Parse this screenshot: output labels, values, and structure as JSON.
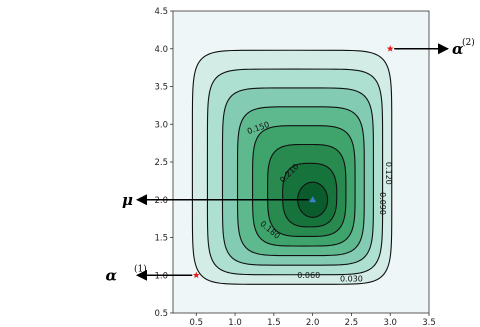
{
  "chart_data": {
    "type": "contour",
    "title": "",
    "xlabel": "",
    "ylabel": "",
    "xlim": [
      0.2,
      3.5
    ],
    "ylim": [
      0.5,
      4.5
    ],
    "xticks": [
      "0.5",
      "1.0",
      "1.5",
      "2.0",
      "2.5",
      "3.0",
      "3.5"
    ],
    "yticks": [
      "0.5",
      "1.0",
      "1.5",
      "2.0",
      "2.5",
      "3.0",
      "3.5",
      "4.0",
      "4.5"
    ],
    "background_color": "#eef6f8",
    "contour_levels": [
      {
        "level": 0.0,
        "fill": "#d3ece6"
      },
      {
        "level": 0.03,
        "fill": "#ade0d1"
      },
      {
        "level": 0.06,
        "fill": "#83cbb2"
      },
      {
        "level": 0.09,
        "fill": "#5fb98e"
      },
      {
        "level": 0.12,
        "fill": "#3ea46b"
      },
      {
        "level": 0.15,
        "fill": "#288a4f"
      },
      {
        "level": 0.18,
        "fill": "#16733c"
      },
      {
        "level": 0.21,
        "fill": "#0b5c2d"
      }
    ],
    "center": [
      2.0,
      2.0
    ],
    "contour_labels": [
      {
        "text": "0.150",
        "x": 1.3,
        "y": 2.95,
        "rotate": -20
      },
      {
        "text": "0.210",
        "x": 1.7,
        "y": 2.35,
        "rotate": -45
      },
      {
        "text": "0.180",
        "x": 1.45,
        "y": 1.6,
        "rotate": 40
      },
      {
        "text": "0.060",
        "x": 1.95,
        "y": 1.0,
        "rotate": 0
      },
      {
        "text": "0.030",
        "x": 2.5,
        "y": 0.95,
        "rotate": 0
      },
      {
        "text": "0.120",
        "x": 2.98,
        "y": 2.35,
        "rotate": 90
      },
      {
        "text": "0.090",
        "x": 2.9,
        "y": 1.95,
        "rotate": 90
      }
    ],
    "points": [
      {
        "name": "mu",
        "x": 2.0,
        "y": 2.0,
        "marker": "triangle",
        "color": "#3b7fd1"
      },
      {
        "name": "alpha1",
        "x": 0.5,
        "y": 1.0,
        "marker": "star",
        "color": "#e41a1c"
      },
      {
        "name": "alpha2",
        "x": 3.0,
        "y": 4.0,
        "marker": "star",
        "color": "#e41a1c"
      }
    ],
    "annotations": [
      {
        "point": "mu",
        "symbol": "μ",
        "sup": "",
        "side": "left"
      },
      {
        "point": "alpha1",
        "symbol": "α",
        "sup": "(1)",
        "side": "left"
      },
      {
        "point": "alpha2",
        "symbol": "α",
        "sup": "(2)",
        "side": "right"
      }
    ]
  }
}
